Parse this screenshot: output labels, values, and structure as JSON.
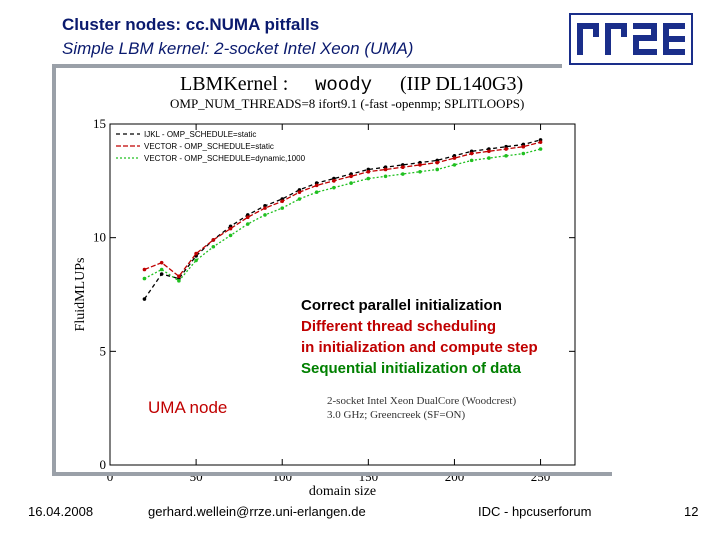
{
  "slide": {
    "title": "Cluster nodes: cc.NUMA pitfalls",
    "subtitle": "Simple LBM kernel: 2-socket Intel Xeon (UMA)"
  },
  "footer": {
    "date": "16.04.2008",
    "email": "gerhard.wellein@rrze.uni-erlangen.de",
    "event": "IDC - hpcuserforum",
    "page": "12"
  },
  "logo": {
    "text": "rrze"
  },
  "colors": {
    "title": "#0a1a6e",
    "black": "#000000",
    "red": "#c00000",
    "green": "#008000",
    "series_green": "#20c020"
  },
  "chart_data": {
    "type": "line",
    "title": "LBMKernel :",
    "title_machine": "woody",
    "title_suffix": "(IIP DL140G3)",
    "subtitle": "OMP_NUM_THREADS=8  ifort9.1 (-fast -openmp; SPLITLOOPS)",
    "xlabel": "domain size",
    "ylabel": "FluidMLUPs",
    "xlim": [
      0,
      270
    ],
    "ylim": [
      0,
      15
    ],
    "xticks": [
      0,
      50,
      100,
      150,
      200,
      250
    ],
    "yticks": [
      0,
      5,
      10,
      15
    ],
    "grid": false,
    "legend_position": "top-left",
    "x": [
      20,
      30,
      40,
      50,
      60,
      70,
      80,
      90,
      100,
      110,
      120,
      130,
      140,
      150,
      160,
      170,
      180,
      190,
      200,
      210,
      220,
      230,
      240,
      250
    ],
    "series": [
      {
        "name": "IJKL - OMP_SCHEDULE=static",
        "color": "#000000",
        "values": [
          7.3,
          8.4,
          8.2,
          9.2,
          9.9,
          10.5,
          11.0,
          11.4,
          11.7,
          12.1,
          12.4,
          12.6,
          12.8,
          13.0,
          13.1,
          13.2,
          13.3,
          13.4,
          13.6,
          13.8,
          13.9,
          14.0,
          14.1,
          14.3
        ]
      },
      {
        "name": "VECTOR - OMP_SCHEDULE=static",
        "color": "#c00000",
        "values": [
          8.6,
          8.9,
          8.3,
          9.3,
          9.9,
          10.4,
          10.9,
          11.3,
          11.6,
          12.0,
          12.3,
          12.5,
          12.7,
          12.9,
          13.0,
          13.1,
          13.2,
          13.3,
          13.5,
          13.7,
          13.8,
          13.9,
          14.0,
          14.2
        ]
      },
      {
        "name": "VECTOR - OMP_SCHEDULE=dynamic,1000",
        "color": "#20c020",
        "values": [
          8.2,
          8.6,
          8.1,
          9.0,
          9.6,
          10.1,
          10.6,
          11.0,
          11.3,
          11.7,
          12.0,
          12.2,
          12.4,
          12.6,
          12.7,
          12.8,
          12.9,
          13.0,
          13.2,
          13.4,
          13.5,
          13.6,
          13.7,
          13.9
        ]
      }
    ],
    "annotations": [
      {
        "text": "Correct parallel initialization",
        "color": "#000000"
      },
      {
        "text": "Different thread scheduling",
        "color": "#c00000"
      },
      {
        "text": "in initialization and compute step",
        "color": "#c00000"
      },
      {
        "text": "Sequential initialization of data",
        "color": "#008000"
      },
      {
        "text": "UMA node",
        "color": "#c00000"
      },
      {
        "text": "2-socket Intel Xeon DualCore (Woodcrest)",
        "color": "#333333"
      },
      {
        "text": "3.0 GHz; Greencreek (SF=ON)",
        "color": "#333333"
      }
    ]
  }
}
